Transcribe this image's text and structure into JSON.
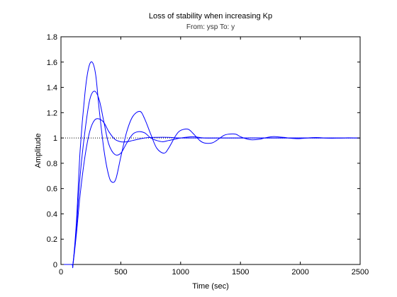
{
  "chart_data": {
    "type": "line",
    "title": "Loss of stability when increasing Kp",
    "subtitle": "From: ysp  To: y",
    "xlabel": "Time (sec)",
    "ylabel": "Amplitude",
    "xlim": [
      0,
      2500
    ],
    "ylim": [
      0,
      1.8
    ],
    "xticks": [
      0,
      500,
      1000,
      1500,
      2000,
      2500
    ],
    "yticks": [
      0,
      0.2,
      0.4,
      0.6,
      0.8,
      1,
      1.2,
      1.4,
      1.6,
      1.8
    ],
    "xtick_labels": [
      "0",
      "500",
      "1000",
      "1500",
      "2000",
      "2500"
    ],
    "ytick_labels": [
      "0",
      "0.2",
      "0.4",
      "0.6",
      "0.8",
      "1",
      "1.2",
      "1.4",
      "1.6",
      "1.8"
    ],
    "grid": false,
    "legend": "none",
    "reference_line": {
      "y": 1,
      "style": "dotted"
    },
    "series_color": "#0000ff",
    "series": [
      {
        "x": [
          0,
          90,
          100,
          130,
          160,
          200,
          240,
          280,
          320,
          360,
          400,
          450,
          500,
          550,
          600,
          700,
          800,
          900,
          1000,
          1200,
          1500,
          2000,
          2500
        ],
        "y": [
          0,
          0,
          0.0,
          0.25,
          0.55,
          0.85,
          1.05,
          1.14,
          1.15,
          1.12,
          1.05,
          0.99,
          0.97,
          0.97,
          0.98,
          1.0,
          1.005,
          1.005,
          1.0,
          1.0,
          1.0,
          1.0,
          1.0
        ]
      },
      {
        "x": [
          0,
          90,
          100,
          130,
          160,
          200,
          240,
          280,
          320,
          360,
          400,
          450,
          500,
          550,
          600,
          650,
          700,
          750,
          800,
          850,
          900,
          1000,
          1100,
          1200,
          1400,
          1600,
          2000,
          2500
        ],
        "y": [
          0,
          0,
          0.0,
          0.3,
          0.7,
          1.05,
          1.3,
          1.37,
          1.3,
          1.12,
          0.95,
          0.87,
          0.88,
          0.96,
          1.03,
          1.05,
          1.04,
          1.0,
          0.98,
          0.97,
          0.98,
          1.0,
          1.01,
          1.0,
          1.0,
          1.0,
          1.0,
          1.0
        ]
      },
      {
        "x": [
          0,
          90,
          100,
          130,
          160,
          200,
          230,
          260,
          290,
          320,
          360,
          400,
          430,
          460,
          500,
          550,
          600,
          660,
          700,
          750,
          800,
          860,
          900,
          960,
          1000,
          1060,
          1100,
          1160,
          1200,
          1260,
          1300,
          1360,
          1400,
          1460,
          1500,
          1560,
          1600,
          1660,
          1700,
          1760,
          1800,
          1860,
          1900,
          1960,
          2000,
          2060,
          2100,
          2160,
          2200,
          2260,
          2300,
          2360,
          2400,
          2500
        ],
        "y": [
          0,
          0,
          0.0,
          0.35,
          0.9,
          1.35,
          1.55,
          1.6,
          1.5,
          1.22,
          0.9,
          0.7,
          0.65,
          0.68,
          0.85,
          1.05,
          1.17,
          1.21,
          1.15,
          1.03,
          0.92,
          0.88,
          0.92,
          1.02,
          1.06,
          1.07,
          1.04,
          0.98,
          0.96,
          0.96,
          0.98,
          1.02,
          1.03,
          1.03,
          1.01,
          0.99,
          0.985,
          0.99,
          1.0,
          1.01,
          1.01,
          1.005,
          1.0,
          0.995,
          0.995,
          1.0,
          1.003,
          1.003,
          1.0,
          0.998,
          0.999,
          1.0,
          1.001,
          1.0
        ]
      }
    ]
  }
}
